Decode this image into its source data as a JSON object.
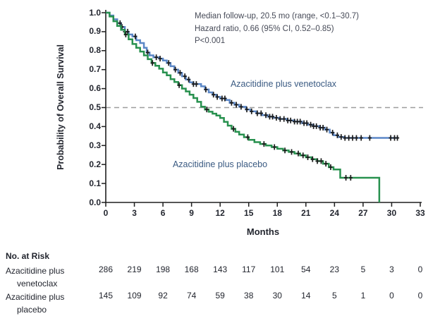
{
  "chart_data": {
    "type": "line",
    "chart_kind": "kaplan_meier_step_curve",
    "title": "",
    "xlabel": "Months",
    "ylabel": "Probability of Overall Survival",
    "xlim": [
      0,
      33
    ],
    "ylim": [
      0.0,
      1.0
    ],
    "x_ticks": [
      0,
      3,
      6,
      9,
      12,
      15,
      18,
      21,
      24,
      27,
      30,
      33
    ],
    "y_ticks": [
      "1.0",
      "0.9",
      "0.8",
      "0.7",
      "0.6",
      "0.5",
      "0.4",
      "0.3",
      "0.2",
      "0.1",
      "0.0"
    ],
    "grid": false,
    "legend_position": "inline-labels",
    "reference_line": {
      "y": 0.5,
      "style": "dashed",
      "color": "#9d9d9d"
    },
    "annotations": [
      "Median follow-up, 20.5 mo (range, <0.1–30.7)",
      "Hazard ratio, 0.66 (95% CI, 0.52–0.85)",
      "P<0.001"
    ],
    "censor_color": "#1b1b1b",
    "series": [
      {
        "name": "Azacitidine plus venetoclax",
        "color": "#5b87c7",
        "end_time": 30.7,
        "points": [
          [
            0,
            1.0
          ],
          [
            0.4,
            0.985
          ],
          [
            0.8,
            0.965
          ],
          [
            1.2,
            0.945
          ],
          [
            1.6,
            0.925
          ],
          [
            2.0,
            0.9
          ],
          [
            2.4,
            0.885
          ],
          [
            2.8,
            0.875
          ],
          [
            3.2,
            0.855
          ],
          [
            3.6,
            0.84
          ],
          [
            4.0,
            0.815
          ],
          [
            4.3,
            0.79
          ],
          [
            4.6,
            0.775
          ],
          [
            5.0,
            0.765
          ],
          [
            5.6,
            0.758
          ],
          [
            6.0,
            0.748
          ],
          [
            6.4,
            0.735
          ],
          [
            6.8,
            0.718
          ],
          [
            7.2,
            0.7
          ],
          [
            7.6,
            0.683
          ],
          [
            8.0,
            0.665
          ],
          [
            8.4,
            0.648
          ],
          [
            8.8,
            0.633
          ],
          [
            9.2,
            0.624
          ],
          [
            10.0,
            0.612
          ],
          [
            10.4,
            0.595
          ],
          [
            10.8,
            0.58
          ],
          [
            11.2,
            0.568
          ],
          [
            11.6,
            0.556
          ],
          [
            12.0,
            0.548
          ],
          [
            12.6,
            0.54
          ],
          [
            13.0,
            0.525
          ],
          [
            13.5,
            0.515
          ],
          [
            14.0,
            0.504
          ],
          [
            14.7,
            0.49
          ],
          [
            15.2,
            0.48
          ],
          [
            15.8,
            0.47
          ],
          [
            16.4,
            0.46
          ],
          [
            17.0,
            0.452
          ],
          [
            17.6,
            0.446
          ],
          [
            18.2,
            0.44
          ],
          [
            19.0,
            0.432
          ],
          [
            19.8,
            0.426
          ],
          [
            20.6,
            0.418
          ],
          [
            21.2,
            0.41
          ],
          [
            21.8,
            0.402
          ],
          [
            22.4,
            0.394
          ],
          [
            23.0,
            0.384
          ],
          [
            23.5,
            0.368
          ],
          [
            23.9,
            0.354
          ],
          [
            24.4,
            0.345
          ],
          [
            25.0,
            0.34
          ]
        ],
        "censor_times": [
          1.5,
          1.7,
          2.0,
          2.3,
          3.1,
          4.4,
          5.3,
          5.7,
          6.6,
          7.3,
          7.8,
          8.3,
          8.7,
          9.2,
          9.5,
          10.5,
          11.3,
          11.7,
          12.2,
          12.5,
          13.2,
          13.7,
          14.2,
          14.8,
          15.3,
          15.9,
          16.3,
          16.8,
          17.2,
          17.5,
          17.9,
          18.3,
          18.7,
          19.1,
          19.4,
          19.8,
          20.1,
          20.4,
          20.8,
          21.1,
          21.5,
          21.8,
          22.1,
          22.5,
          22.8,
          23.2,
          23.8,
          24.3,
          24.7,
          25.1,
          25.5,
          25.9,
          26.3,
          26.8,
          27.7,
          29.9,
          30.3,
          30.6
        ]
      },
      {
        "name": "Azacitidine plus placebo",
        "color": "#28914f",
        "end_time": 28.7,
        "points": [
          [
            0,
            1.0
          ],
          [
            0.4,
            0.98
          ],
          [
            0.8,
            0.955
          ],
          [
            1.2,
            0.93
          ],
          [
            1.6,
            0.91
          ],
          [
            2.0,
            0.885
          ],
          [
            2.4,
            0.86
          ],
          [
            2.8,
            0.835
          ],
          [
            3.2,
            0.815
          ],
          [
            3.6,
            0.795
          ],
          [
            4.0,
            0.775
          ],
          [
            4.4,
            0.755
          ],
          [
            4.8,
            0.735
          ],
          [
            5.2,
            0.72
          ],
          [
            5.6,
            0.705
          ],
          [
            6.0,
            0.685
          ],
          [
            6.4,
            0.67
          ],
          [
            6.8,
            0.65
          ],
          [
            7.2,
            0.635
          ],
          [
            7.6,
            0.618
          ],
          [
            8.0,
            0.6
          ],
          [
            8.4,
            0.585
          ],
          [
            8.8,
            0.568
          ],
          [
            9.2,
            0.55
          ],
          [
            9.6,
            0.53
          ],
          [
            10.0,
            0.505
          ],
          [
            10.4,
            0.49
          ],
          [
            10.8,
            0.478
          ],
          [
            11.2,
            0.468
          ],
          [
            11.6,
            0.458
          ],
          [
            12.0,
            0.445
          ],
          [
            12.4,
            0.425
          ],
          [
            12.8,
            0.405
          ],
          [
            13.2,
            0.388
          ],
          [
            13.6,
            0.372
          ],
          [
            14.0,
            0.358
          ],
          [
            14.5,
            0.344
          ],
          [
            15.0,
            0.33
          ],
          [
            15.6,
            0.318
          ],
          [
            16.2,
            0.308
          ],
          [
            16.8,
            0.3
          ],
          [
            17.4,
            0.292
          ],
          [
            18.0,
            0.283
          ],
          [
            18.6,
            0.274
          ],
          [
            19.2,
            0.266
          ],
          [
            19.8,
            0.258
          ],
          [
            20.4,
            0.248
          ],
          [
            21.0,
            0.238
          ],
          [
            21.6,
            0.228
          ],
          [
            22.2,
            0.218
          ],
          [
            22.8,
            0.204
          ],
          [
            23.4,
            0.186
          ],
          [
            23.9,
            0.174
          ],
          [
            24.6,
            0.13
          ],
          [
            28.7,
            0.0
          ]
        ],
        "censor_times": [
          2.1,
          4.9,
          7.7,
          10.6,
          13.4,
          14.9,
          16.6,
          17.7,
          18.8,
          19.5,
          20.2,
          20.7,
          21.2,
          21.7,
          22.2,
          22.6,
          23.1,
          23.6,
          25.2,
          25.7
        ]
      }
    ]
  },
  "risk_table": {
    "title": "No. at Risk",
    "time_points": [
      0,
      3,
      6,
      9,
      12,
      15,
      18,
      21,
      24,
      27,
      30,
      33
    ],
    "rows": [
      {
        "label_line1": "Azacitidine plus",
        "label_line2": "venetoclax",
        "counts": [
          286,
          219,
          198,
          168,
          143,
          117,
          101,
          54,
          23,
          5,
          3,
          0
        ]
      },
      {
        "label_line1": "Azacitidine plus",
        "label_line2": "placebo",
        "counts": [
          145,
          109,
          92,
          74,
          59,
          38,
          30,
          14,
          5,
          1,
          0,
          0
        ]
      }
    ]
  }
}
